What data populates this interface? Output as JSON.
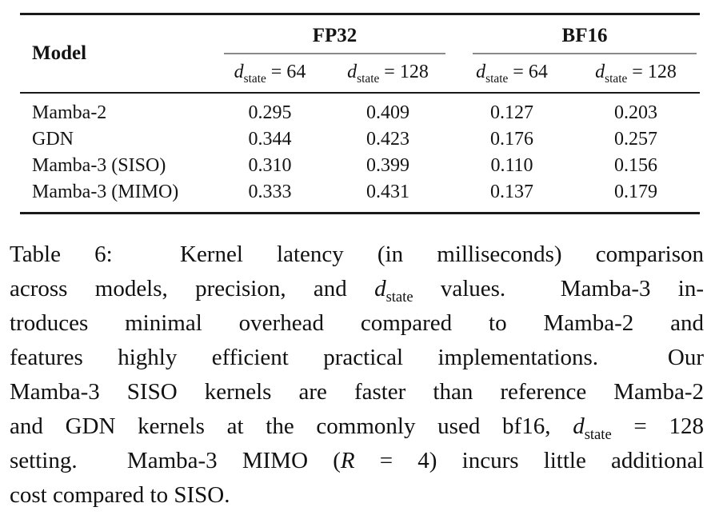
{
  "table": {
    "header": {
      "model_label": "Model",
      "groups": [
        {
          "label": "FP32"
        },
        {
          "label": "BF16"
        }
      ],
      "subcolumns": [
        {
          "var": "d",
          "sub": "state",
          "rest": " = 64"
        },
        {
          "var": "d",
          "sub": "state",
          "rest": " = 128"
        },
        {
          "var": "d",
          "sub": "state",
          "rest": " = 64"
        },
        {
          "var": "d",
          "sub": "state",
          "rest": " = 128"
        }
      ]
    },
    "rows": [
      {
        "model": "Mamba-2",
        "values": [
          "0.295",
          "0.409",
          "0.127",
          "0.203"
        ]
      },
      {
        "model": "GDN",
        "values": [
          "0.344",
          "0.423",
          "0.176",
          "0.257"
        ]
      },
      {
        "model": "Mamba-3 (SISO)",
        "values": [
          "0.310",
          "0.399",
          "0.110",
          "0.156"
        ]
      },
      {
        "model": "Mamba-3 (MIMO)",
        "values": [
          "0.333",
          "0.431",
          "0.137",
          "0.179"
        ]
      }
    ],
    "units": "milliseconds"
  },
  "caption": {
    "label": "Table 6:",
    "lines": [
      [
        {
          "t": "Table 6:  Kernel latency (in milliseconds) comparison"
        }
      ],
      [
        {
          "t": "across models, precision, and "
        },
        {
          "var": "d",
          "sub": "state"
        },
        {
          "t": " values.  Mamba-3 in-"
        }
      ],
      [
        {
          "t": "troduces minimal overhead compared to Mamba-2 and"
        }
      ],
      [
        {
          "t": "features highly efficient practical implementations.  Our"
        }
      ],
      [
        {
          "t": "Mamba-3 SISO kernels are faster than reference Mamba-2"
        }
      ],
      [
        {
          "t": "and GDN kernels at the commonly used bf16, "
        },
        {
          "var": "d",
          "sub": "state"
        },
        {
          "t": " = 128"
        }
      ],
      [
        {
          "t": "setting.  Mamba-3 MIMO ("
        },
        {
          "var": "R"
        },
        {
          "t": " = 4) incurs little additional"
        }
      ],
      [
        {
          "t": "cost compared to SISO."
        }
      ]
    ]
  },
  "colors": {
    "background": "#ffffff",
    "text": "#141414",
    "rule_heavy": "#1a1a1a",
    "rule_light": "#8a8a8a"
  }
}
